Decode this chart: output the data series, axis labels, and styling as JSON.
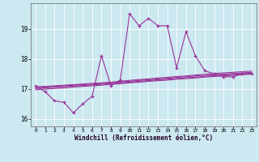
{
  "xlabel": "Windchill (Refroidissement éolien,°C)",
  "bg_color": "#cce8f0",
  "grid_color": "#ffffff",
  "line_color": "#993399",
  "x": [
    0,
    1,
    2,
    3,
    4,
    5,
    6,
    7,
    8,
    9,
    10,
    11,
    12,
    13,
    14,
    15,
    16,
    17,
    18,
    19,
    20,
    21,
    22,
    23
  ],
  "y_main": [
    17.1,
    16.9,
    16.6,
    16.55,
    16.2,
    16.5,
    16.75,
    18.1,
    17.1,
    17.3,
    19.5,
    19.1,
    19.35,
    19.1,
    19.1,
    17.7,
    18.9,
    18.1,
    17.6,
    17.5,
    17.4,
    17.4,
    17.5,
    17.5
  ],
  "y_trend1": [
    17.07,
    17.08,
    17.1,
    17.12,
    17.14,
    17.16,
    17.18,
    17.2,
    17.22,
    17.25,
    17.28,
    17.31,
    17.33,
    17.36,
    17.38,
    17.41,
    17.43,
    17.46,
    17.48,
    17.51,
    17.53,
    17.55,
    17.57,
    17.59
  ],
  "y_trend2": [
    17.04,
    17.06,
    17.08,
    17.1,
    17.12,
    17.14,
    17.16,
    17.18,
    17.2,
    17.23,
    17.25,
    17.28,
    17.3,
    17.33,
    17.35,
    17.38,
    17.4,
    17.43,
    17.45,
    17.47,
    17.49,
    17.51,
    17.53,
    17.55
  ],
  "y_trend3": [
    17.01,
    17.03,
    17.05,
    17.07,
    17.09,
    17.11,
    17.13,
    17.15,
    17.17,
    17.2,
    17.22,
    17.25,
    17.27,
    17.3,
    17.32,
    17.34,
    17.37,
    17.39,
    17.41,
    17.44,
    17.46,
    17.48,
    17.5,
    17.52
  ],
  "y_trend4": [
    16.97,
    16.99,
    17.01,
    17.03,
    17.06,
    17.08,
    17.1,
    17.12,
    17.15,
    17.17,
    17.2,
    17.22,
    17.25,
    17.27,
    17.29,
    17.32,
    17.34,
    17.36,
    17.39,
    17.41,
    17.43,
    17.45,
    17.47,
    17.49
  ],
  "ylim": [
    15.75,
    19.85
  ],
  "yticks": [
    16,
    17,
    18,
    19
  ],
  "xticks": [
    0,
    1,
    2,
    3,
    4,
    5,
    6,
    7,
    8,
    9,
    10,
    11,
    12,
    13,
    14,
    15,
    16,
    17,
    18,
    19,
    20,
    21,
    22,
    23
  ],
  "marker_size": 3.5,
  "line_width": 0.8
}
